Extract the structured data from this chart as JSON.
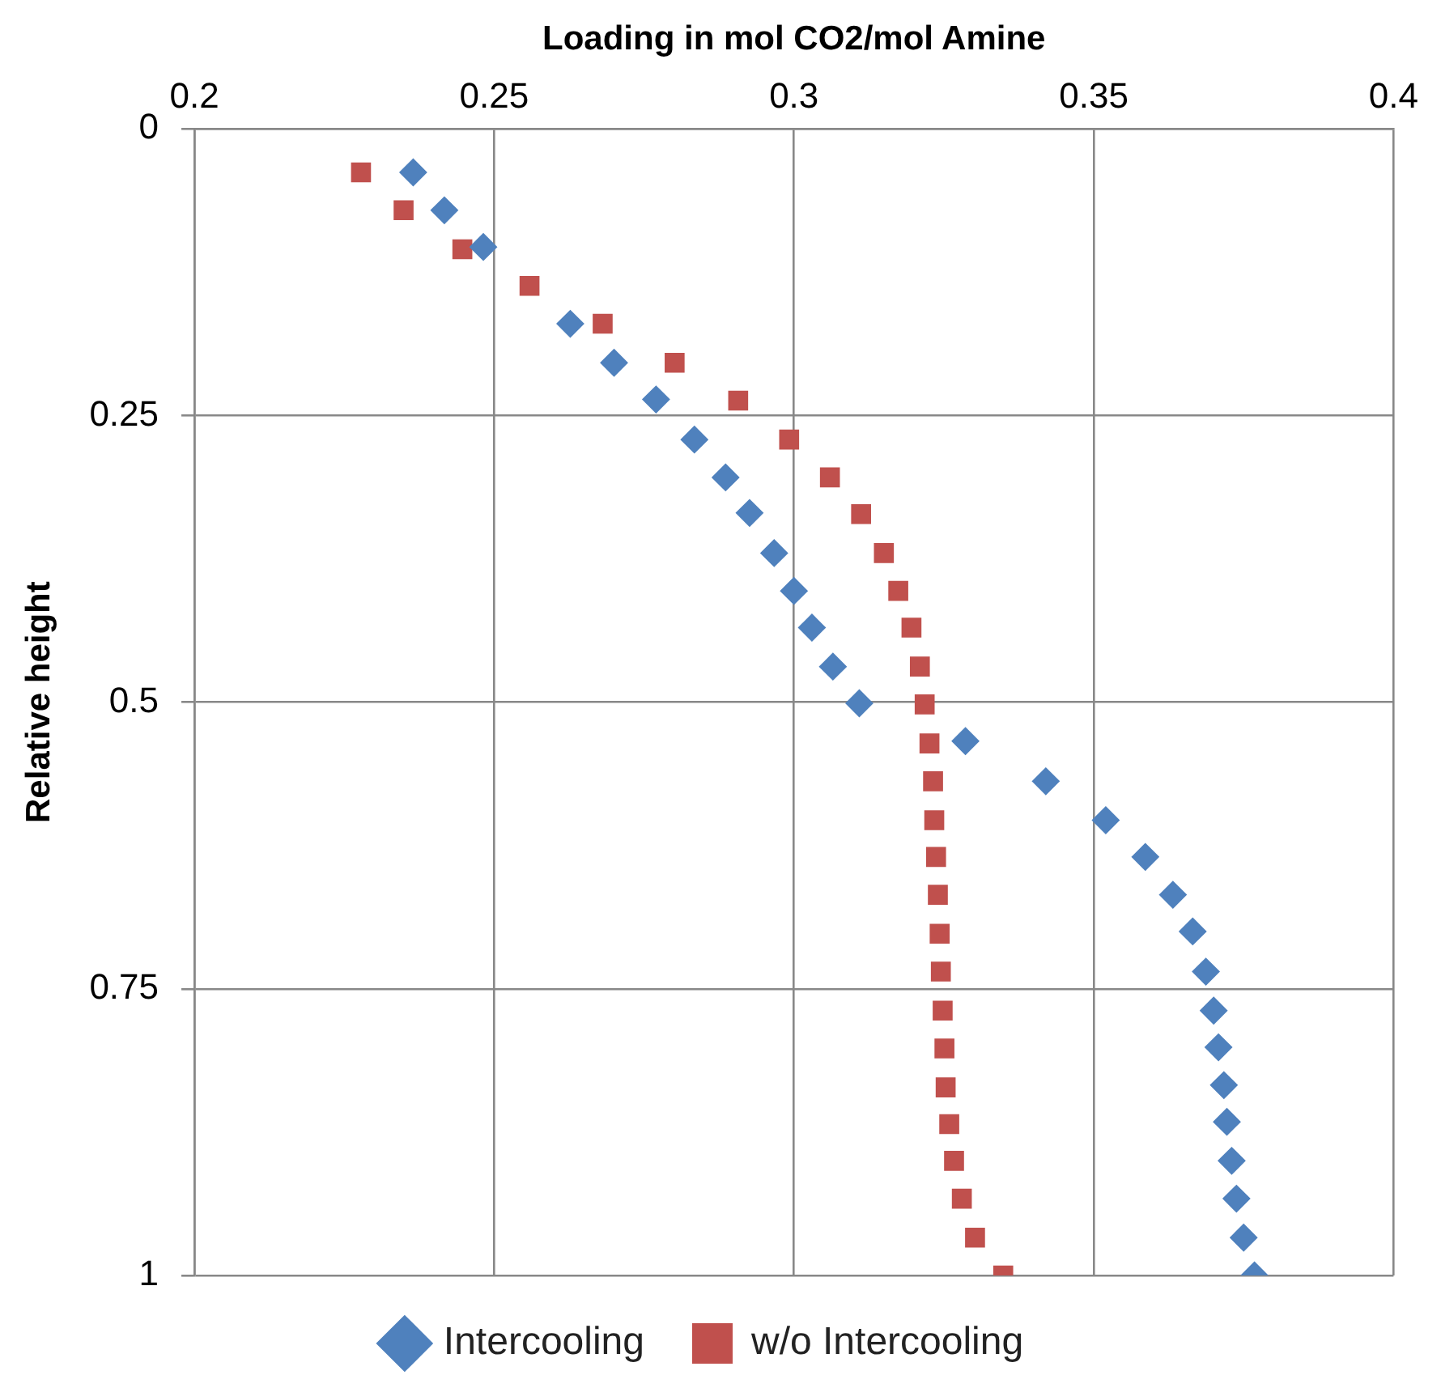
{
  "chart_data": {
    "type": "scatter",
    "xlabel": "Loading in mol CO2/mol Amine",
    "ylabel": "Relative height",
    "xlim": [
      0.2,
      0.4
    ],
    "xticks": [
      0.2,
      0.25,
      0.3,
      0.35,
      0.4
    ],
    "ylim": [
      1,
      0
    ],
    "yticks": [
      0,
      0.25,
      0.5,
      0.75,
      1
    ],
    "grid": true,
    "legend": "bottom",
    "series": [
      {
        "name": "Intercooling",
        "color": "#4f81bd",
        "marker": "diamond",
        "x": [
          0.2365,
          0.2417,
          0.2482,
          0.2627,
          0.27,
          0.277,
          0.2834,
          0.2886,
          0.2926,
          0.2967,
          0.3,
          0.303,
          0.3065,
          0.3109,
          0.3286,
          0.342,
          0.352,
          0.3586,
          0.3632,
          0.3665,
          0.3687,
          0.37,
          0.3708,
          0.3717,
          0.3722,
          0.373,
          0.3738,
          0.375,
          0.3768
        ],
        "values": [
          0.038,
          0.071,
          0.103,
          0.17,
          0.204,
          0.236,
          0.271,
          0.304,
          0.335,
          0.37,
          0.403,
          0.435,
          0.469,
          0.501,
          0.534,
          0.569,
          0.603,
          0.635,
          0.668,
          0.7,
          0.735,
          0.769,
          0.801,
          0.834,
          0.866,
          0.9,
          0.933,
          0.967,
          1.0
        ]
      },
      {
        "name": "w/o Intercooling",
        "color": "#c0504d",
        "marker": "square",
        "x": [
          0.2278,
          0.2349,
          0.2447,
          0.2559,
          0.2681,
          0.2801,
          0.2907,
          0.2992,
          0.306,
          0.3112,
          0.315,
          0.3174,
          0.3196,
          0.321,
          0.3218,
          0.3226,
          0.3232,
          0.3234,
          0.3237,
          0.324,
          0.3243,
          0.3245,
          0.3248,
          0.3251,
          0.3253,
          0.3259,
          0.3267,
          0.328,
          0.3302,
          0.3349
        ],
        "values": [
          0.038,
          0.071,
          0.105,
          0.137,
          0.17,
          0.204,
          0.237,
          0.271,
          0.304,
          0.336,
          0.37,
          0.403,
          0.435,
          0.469,
          0.502,
          0.536,
          0.569,
          0.603,
          0.635,
          0.668,
          0.702,
          0.735,
          0.769,
          0.802,
          0.836,
          0.868,
          0.9,
          0.933,
          0.967,
          1.0
        ]
      }
    ]
  }
}
